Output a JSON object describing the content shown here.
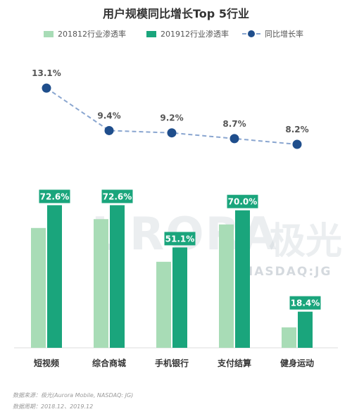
{
  "chart_data": {
    "type": "bar",
    "title": "用户规模同比增长Top 5行业",
    "categories": [
      "短视频",
      "综合商城",
      "手机银行",
      "支付结算",
      "健身运动"
    ],
    "series": [
      {
        "name": "201812行业渗透率",
        "values": [
          61.0,
          65.5,
          43.8,
          62.8,
          10.4
        ],
        "color": "#a8dcb6"
      },
      {
        "name": "201912行业渗透率",
        "values": [
          72.6,
          72.6,
          51.1,
          70.0,
          18.4
        ],
        "labels": [
          "72.6%",
          "72.6%",
          "51.1%",
          "70.0%",
          "18.4%"
        ],
        "color": "#1aa57c"
      }
    ],
    "line_series": {
      "name": "同比增长率",
      "values": [
        13.1,
        9.4,
        9.2,
        8.7,
        8.2
      ],
      "labels": [
        "13.1%",
        "9.4%",
        "9.2%",
        "8.7%",
        "8.2%"
      ],
      "color": "#1f4e8c"
    },
    "ylim": [
      0,
      100
    ],
    "grid": false,
    "legend": "top"
  },
  "watermark": {
    "brand": "URORA",
    "cjk": "极光",
    "label": "NASDAQ:JG"
  },
  "footer": {
    "source": "数据来源：极光(Aurora Mobile, NASDAQ: JG)",
    "period": "数据周期：2018.12、2019.12"
  }
}
